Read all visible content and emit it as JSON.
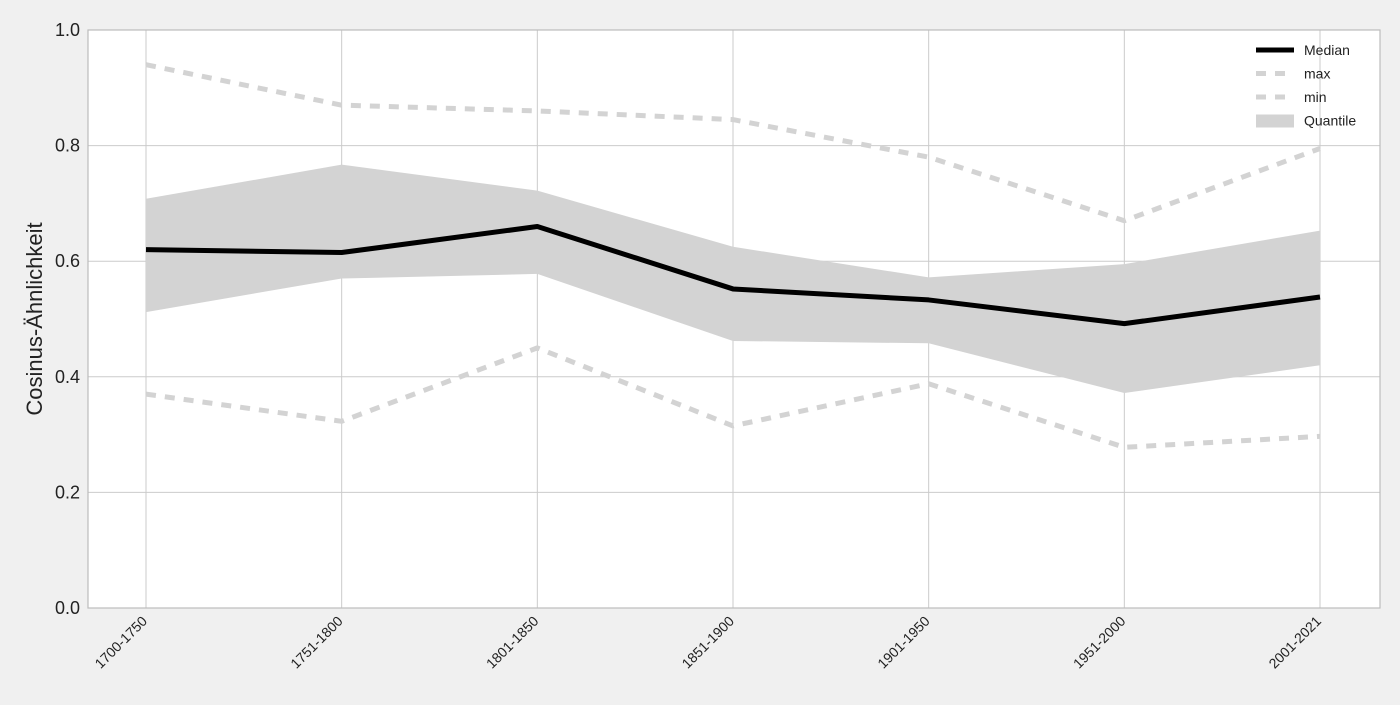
{
  "chart_data": {
    "type": "line",
    "title": "",
    "xlabel": "",
    "ylabel": "Cosinus-Ähnlichkeit",
    "categories": [
      "1700-1750",
      "1751-1800",
      "1801-1850",
      "1851-1900",
      "1901-1950",
      "1951-2000",
      "2001-2021"
    ],
    "ylim": [
      0.0,
      1.0
    ],
    "yticks": [
      "0.0",
      "0.2",
      "0.4",
      "0.6",
      "0.8",
      "1.0"
    ],
    "grid": true,
    "legend_position": "top-right",
    "series": [
      {
        "name": "Median",
        "style": "solid",
        "color": "#000000",
        "values": [
          0.62,
          0.615,
          0.66,
          0.552,
          0.533,
          0.492,
          0.538
        ]
      },
      {
        "name": "max",
        "style": "dashed",
        "color": "#d3d3d3",
        "values": [
          0.94,
          0.87,
          0.86,
          0.845,
          0.78,
          0.67,
          0.795
        ]
      },
      {
        "name": "min",
        "style": "dashed",
        "color": "#d3d3d3",
        "values": [
          0.37,
          0.323,
          0.45,
          0.315,
          0.388,
          0.278,
          0.297
        ]
      }
    ],
    "band": {
      "name": "Quantile",
      "color": "#d3d3d3",
      "upper": [
        0.708,
        0.767,
        0.722,
        0.625,
        0.572,
        0.595,
        0.653
      ],
      "lower": [
        0.512,
        0.57,
        0.578,
        0.462,
        0.458,
        0.372,
        0.42
      ]
    }
  }
}
